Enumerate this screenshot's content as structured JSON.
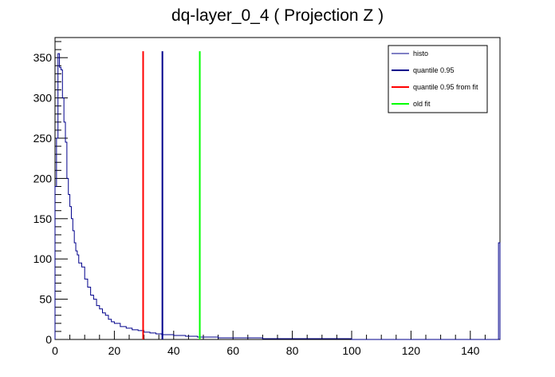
{
  "chart_data": {
    "type": "line",
    "title": "dq-layer_0_4 ( Projection Z )",
    "xlabel": "",
    "ylabel": "",
    "xlim": [
      0,
      150
    ],
    "ylim": [
      0,
      375
    ],
    "xticks": [
      0,
      20,
      40,
      60,
      80,
      100,
      120,
      140
    ],
    "xtick_labels": [
      "0",
      "20",
      "40",
      "60",
      "80",
      "100",
      "120",
      "140"
    ],
    "yticks": [
      0,
      50,
      100,
      150,
      200,
      250,
      300,
      350
    ],
    "ytick_labels": [
      "0",
      "50",
      "100",
      "150",
      "200",
      "250",
      "300",
      "350"
    ],
    "grid": false,
    "legend_position": "top-right",
    "series": [
      {
        "name": "histo",
        "color": "#00008b",
        "style": "step",
        "x": [
          0,
          0.5,
          1,
          1.5,
          2,
          2.5,
          3,
          3.5,
          4,
          4.5,
          5,
          5.5,
          6,
          6.5,
          7,
          7.5,
          8,
          9,
          10,
          11,
          12,
          13,
          14,
          15,
          16,
          17,
          18,
          19,
          20,
          22,
          24,
          26,
          28,
          30,
          32,
          34,
          36,
          38,
          40,
          42,
          44,
          46,
          48,
          50,
          55,
          60,
          65,
          70,
          75,
          80,
          90,
          100,
          110,
          120,
          130,
          140,
          149.5,
          150
        ],
        "values": [
          190,
          250,
          355,
          338,
          335,
          300,
          270,
          245,
          200,
          180,
          165,
          150,
          135,
          120,
          110,
          105,
          95,
          90,
          75,
          65,
          55,
          50,
          42,
          38,
          33,
          30,
          25,
          22,
          20,
          16,
          14,
          12,
          11,
          9,
          8,
          7,
          6,
          6,
          5,
          5,
          4,
          4,
          3,
          3,
          2,
          2,
          2,
          1,
          1,
          1,
          1,
          0,
          0,
          0,
          0,
          0,
          120,
          0
        ]
      },
      {
        "name": "quantile 0.95",
        "color": "#00008b",
        "style": "vline",
        "x": [
          36.2
        ],
        "values": [
          358
        ]
      },
      {
        "name": "quantile 0.95 from fit",
        "color": "#ff0000",
        "style": "vline",
        "x": [
          29.7
        ],
        "values": [
          358
        ]
      },
      {
        "name": "old fit",
        "color": "#00ff00",
        "style": "vline",
        "x": [
          48.8
        ],
        "values": [
          358
        ]
      }
    ]
  }
}
